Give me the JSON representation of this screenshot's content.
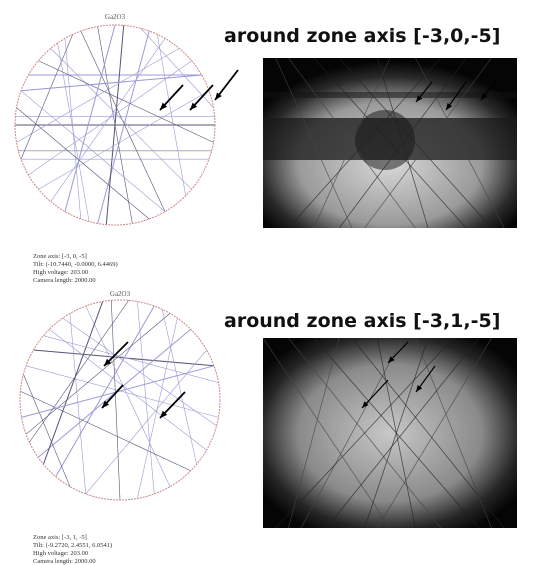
{
  "panels": [
    {
      "sim_title": "Ga2O3",
      "heading": "around zone axis [-3,0,-5]",
      "info": [
        "Zone axis: [-3, 0, -5]",
        "Tilt: (-10.7440, -0.0000, 6.4469)",
        "High voltage: 203.00",
        "Camera length: 2000.00"
      ]
    },
    {
      "sim_title": "Ga2O3",
      "heading": "around zone axis [-3,1,-5]",
      "info": [
        "Zone axis: [-3, 1, -5]",
        "Tilt: (-9.2720, 2.4551, 6.0541)",
        "High voltage: 203.00",
        "Camera length: 2000.00"
      ]
    }
  ]
}
